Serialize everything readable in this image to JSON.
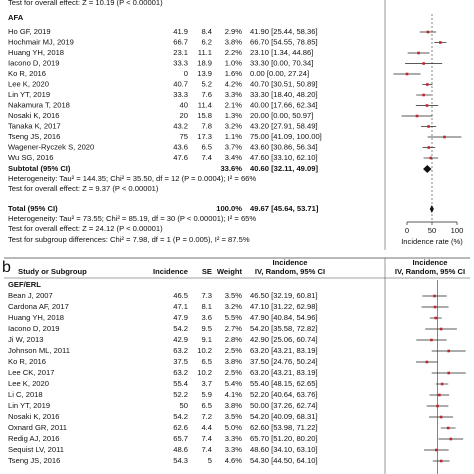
{
  "panel_a": {
    "prev_effect": "Test for overall effect: Z = 10.19 (P < 0.00001)",
    "group": "AFA",
    "rows": [
      {
        "study": "Ho GF, 2019",
        "incidence": 41.9,
        "se": 8.4,
        "weight": "2.9%",
        "ci": "41.90 [25.44, 58.36]"
      },
      {
        "study": "Hochmair MJ, 2019",
        "incidence": 66.7,
        "se": 6.2,
        "weight": "3.8%",
        "ci": "66.70 [54.55, 78.85]"
      },
      {
        "study": "Huang YH, 2018",
        "incidence": 23.1,
        "se": 11.1,
        "weight": "2.2%",
        "ci": "23.10 [1.34, 44.86]"
      },
      {
        "study": "Iacono D, 2019",
        "incidence": 33.3,
        "se": 18.9,
        "weight": "1.0%",
        "ci": "33.30 [0.00, 70.34]"
      },
      {
        "study": "Ko R, 2016",
        "incidence": 0,
        "se": 13.9,
        "weight": "1.6%",
        "ci": "0.00 [0.00, 27.24]"
      },
      {
        "study": "Lee K, 2020",
        "incidence": 40.7,
        "se": 5.2,
        "weight": "4.2%",
        "ci": "40.70 [30.51, 50.89]"
      },
      {
        "study": "Lin YT, 2019",
        "incidence": 33.3,
        "se": 7.6,
        "weight": "3.3%",
        "ci": "33.30 [18.40, 48.20]"
      },
      {
        "study": "Nakamura T, 2018",
        "incidence": 40,
        "se": 11.4,
        "weight": "2.1%",
        "ci": "40.00 [17.66, 62.34]"
      },
      {
        "study": "Nosaki K, 2016",
        "incidence": 20,
        "se": 15.8,
        "weight": "1.3%",
        "ci": "20.00 [0.00, 50.97]"
      },
      {
        "study": "Tanaka K, 2017",
        "incidence": 43.2,
        "se": 7.8,
        "weight": "3.2%",
        "ci": "43.20 [27.91, 58.49]"
      },
      {
        "study": "Tseng JS, 2016",
        "incidence": 75,
        "se": 17.3,
        "weight": "1.1%",
        "ci": "75.00 [41.09, 100.00]"
      },
      {
        "study": "Wagener-Ryczek S, 2020",
        "incidence": 43.6,
        "se": 6.5,
        "weight": "3.7%",
        "ci": "43.60 [30.86, 56.34]"
      },
      {
        "study": "Wu SG, 2016",
        "incidence": 47.6,
        "se": 7.4,
        "weight": "3.4%",
        "ci": "47.60 [33.10, 62.10]"
      }
    ],
    "subtotal": {
      "label": "Subtotal (95% CI)",
      "weight": "33.6%",
      "ci": "40.60 [32.11, 49.09]",
      "estimate": 40.6,
      "ci_low": 32.11,
      "ci_high": 49.09
    },
    "heterogeneity": "Heterogeneity: Tau² = 144.35; Chi² = 35.50, df = 12 (P = 0.0004); I² = 66%",
    "overall_effect": "Test for overall effect: Z = 9.37 (P < 0.00001)",
    "total": {
      "label": "Total (95% CI)",
      "weight": "100.0%",
      "ci": "49.67 [45.64, 53.71]",
      "estimate": 49.67,
      "ci_low": 45.64,
      "ci_high": 53.71
    },
    "total_heterogeneity": "Heterogeneity: Tau² = 73.55; Chi² = 85.19, df = 30 (P < 0.00001); I² = 65%",
    "total_effect": "Test for overall effect: Z = 24.12 (P < 0.00001)",
    "subgroup_differences": "Test for subgroup differences: Chi² = 7.98, df = 1 (P = 0.005), I² = 87.5%",
    "xlim": [
      0,
      100
    ],
    "xticks": [
      0,
      50,
      100
    ],
    "axis_label": "Incidence rate (%)"
  },
  "panel_b": {
    "label": "b",
    "headers": {
      "study": "Study or Subgroup",
      "incidence": "Incidence",
      "se": "SE",
      "weight": "Weight",
      "ci_top": "Incidence",
      "ci": "IV, Random, 95% CI",
      "plot_top": "Incidence",
      "plot": "IV, Random, 95% CI"
    },
    "group": "GEF/ERL",
    "rows": [
      {
        "study": "Bean J, 2007",
        "incidence": 46.5,
        "se": 7.3,
        "weight": "3.5%",
        "ci": "46.50 [32.19, 60.81]"
      },
      {
        "study": "Cardona AF, 2017",
        "incidence": 47.1,
        "se": 8.1,
        "weight": "3.2%",
        "ci": "47.10 [31.22, 62.98]"
      },
      {
        "study": "Huang YH, 2018",
        "incidence": 47.9,
        "se": 3.6,
        "weight": "5.5%",
        "ci": "47.90 [40.84, 54.96]"
      },
      {
        "study": "Iacono D, 2019",
        "incidence": 54.2,
        "se": 9.5,
        "weight": "2.7%",
        "ci": "54.20 [35.58, 72.82]"
      },
      {
        "study": "Ji W, 2013",
        "incidence": 42.9,
        "se": 9.1,
        "weight": "2.8%",
        "ci": "42.90 [25.06, 60.74]"
      },
      {
        "study": "Johnson ML, 2011",
        "incidence": 63.2,
        "se": 10.2,
        "weight": "2.5%",
        "ci": "63.20 [43.21, 83.19]"
      },
      {
        "study": "Ko R, 2016",
        "incidence": 37.5,
        "se": 6.5,
        "weight": "3.8%",
        "ci": "37.50 [24.76, 50.24]"
      },
      {
        "study": "Lee CK, 2017",
        "incidence": 63.2,
        "se": 10.2,
        "weight": "2.5%",
        "ci": "63.20 [43.21, 83.19]"
      },
      {
        "study": "Lee K, 2020",
        "incidence": 55.4,
        "se": 3.7,
        "weight": "5.4%",
        "ci": "55.40 [48.15, 62.65]"
      },
      {
        "study": "Li C, 2018",
        "incidence": 52.2,
        "se": 5.9,
        "weight": "4.1%",
        "ci": "52.20 [40.64, 63.76]"
      },
      {
        "study": "Lin YT, 2019",
        "incidence": 50,
        "se": 6.5,
        "weight": "3.8%",
        "ci": "50.00 [37.26, 62.74]"
      },
      {
        "study": "Nosaki K, 2016",
        "incidence": 54.2,
        "se": 7.2,
        "weight": "3.5%",
        "ci": "54.20 [40.09, 68.31]"
      },
      {
        "study": "Oxnard GR, 2011",
        "incidence": 62.6,
        "se": 4.4,
        "weight": "5.0%",
        "ci": "62.60 [53.98, 71.22]"
      },
      {
        "study": "Redig AJ, 2016",
        "incidence": 65.7,
        "se": 7.4,
        "weight": "3.3%",
        "ci": "65.70 [51.20, 80.20]"
      },
      {
        "study": "Sequist LV, 2011",
        "incidence": 48.6,
        "se": 7.4,
        "weight": "3.3%",
        "ci": "48.60 [34.10, 63.10]"
      },
      {
        "study": "Tseng JS, 2016",
        "incidence": 54.3,
        "se": 5,
        "weight": "4.6%",
        "ci": "54.30 [44.50, 64.10]"
      }
    ]
  }
}
